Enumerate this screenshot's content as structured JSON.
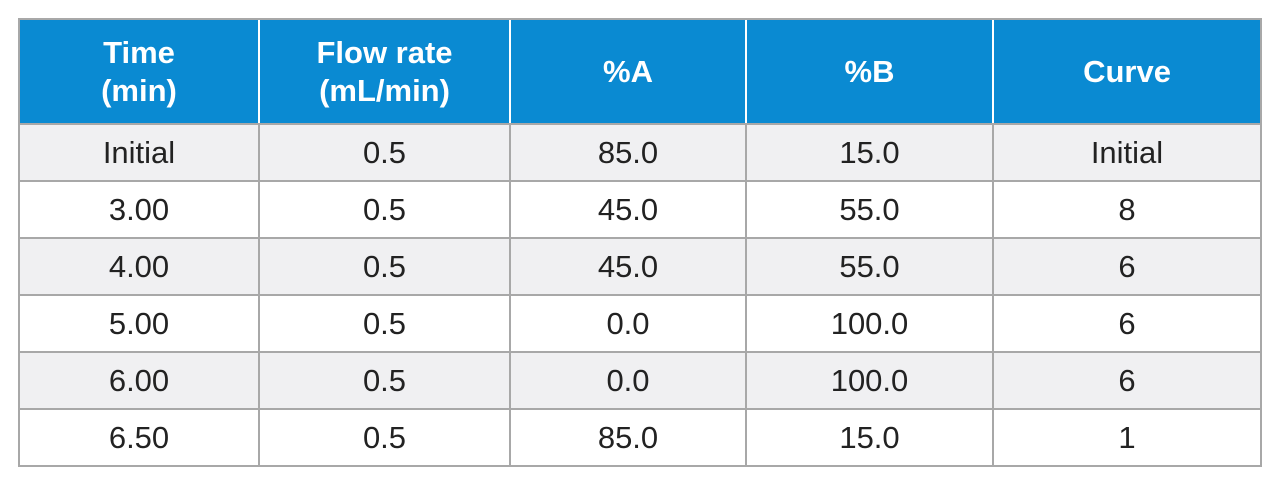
{
  "table": {
    "headers": [
      [
        "Time",
        "(min)"
      ],
      [
        "Flow rate",
        "(mL/min)"
      ],
      [
        "%A"
      ],
      [
        "%B"
      ],
      [
        "Curve"
      ]
    ],
    "rows": [
      [
        "Initial",
        "0.5",
        "85.0",
        "15.0",
        "Initial"
      ],
      [
        "3.00",
        "0.5",
        "45.0",
        "55.0",
        "8"
      ],
      [
        "4.00",
        "0.5",
        "45.0",
        "55.0",
        "6"
      ],
      [
        "5.00",
        "0.5",
        "0.0",
        "100.0",
        "6"
      ],
      [
        "6.00",
        "0.5",
        "0.0",
        "100.0",
        "6"
      ],
      [
        "6.50",
        "0.5",
        "85.0",
        "15.0",
        "1"
      ]
    ]
  },
  "colors": {
    "header_bg": "#0a8ad2",
    "header_text": "#ffffff",
    "row_alt_bg": "#f0f0f2",
    "grid": "#a8a8a8"
  }
}
